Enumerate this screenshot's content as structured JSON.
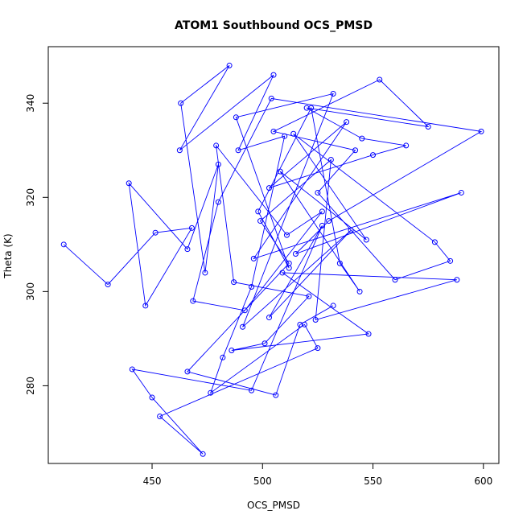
{
  "chart_data": {
    "type": "line",
    "title": "ATOM1 Southbound OCS_PMSD",
    "xlabel": "OCS_PMSD",
    "ylabel": "Theta (K)",
    "xlim": [
      403,
      607
    ],
    "ylim": [
      263.5,
      352
    ],
    "x_ticks": [
      450,
      500,
      550,
      600
    ],
    "y_ticks": [
      280,
      300,
      320,
      340
    ],
    "grid": false,
    "legend": "none",
    "marker": "open-circle",
    "color": "#0000ff",
    "series": [
      {
        "x": [
          410,
          430,
          451.5,
          468,
          447,
          439.5,
          466,
          480,
          474,
          463,
          485,
          462.5,
          505,
          489,
          510,
          495,
          482,
          476.5,
          519,
          525,
          453.5,
          473,
          450,
          441,
          495,
          527,
          503,
          540,
          491,
          532,
          488,
          512,
          498,
          522,
          535,
          544,
          508,
          547,
          514,
          578,
          585,
          560,
          525,
          542,
          505,
          553,
          575,
          520,
          545,
          565,
          550,
          503,
          538,
          496,
          590,
          515,
          530,
          599,
          504,
          480,
          468.5,
          492,
          527,
          511,
          479,
          487,
          521,
          501,
          486,
          548,
          509,
          588,
          524,
          531,
          499,
          512,
          466,
          506,
          517,
          532
        ],
        "y": [
          310,
          301.5,
          312.5,
          313.5,
          297,
          323,
          309,
          327,
          304,
          340,
          348,
          330,
          346,
          330,
          333,
          301,
          286,
          278.5,
          293,
          288,
          273.5,
          265.5,
          277.5,
          283.5,
          279,
          314,
          294.5,
          313,
          292.5,
          342,
          337,
          305,
          317,
          339,
          306,
          300,
          325.5,
          311,
          333.5,
          310.5,
          306.5,
          302.5,
          321,
          330,
          334,
          345,
          335,
          339,
          332.5,
          331,
          329,
          322,
          336,
          307,
          321,
          308,
          315,
          334,
          341,
          319,
          298,
          296,
          317,
          312,
          331,
          302,
          299,
          289,
          287.5,
          291,
          304,
          302.5,
          294,
          328,
          315,
          306,
          283,
          278,
          293,
          297
        ]
      }
    ]
  }
}
